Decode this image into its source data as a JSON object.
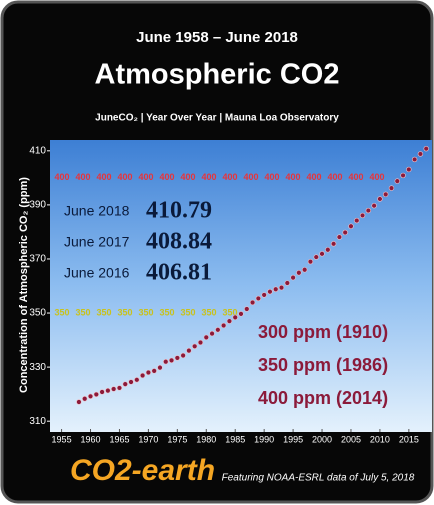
{
  "chart_data": {
    "type": "scatter",
    "header": "June 1958 – June 2018",
    "title": "Atmospheric CO2",
    "subtitle": "JuneCO₂ | Year Over Year | Mauna Loa Observatory",
    "y_label": "Concentration of Atmospheric CO₂ (ppm)",
    "x": [
      1958,
      1959,
      1960,
      1961,
      1962,
      1963,
      1964,
      1965,
      1966,
      1967,
      1968,
      1969,
      1970,
      1971,
      1972,
      1973,
      1974,
      1975,
      1976,
      1977,
      1978,
      1979,
      1980,
      1981,
      1982,
      1983,
      1984,
      1985,
      1986,
      1987,
      1988,
      1989,
      1990,
      1991,
      1992,
      1993,
      1994,
      1995,
      1996,
      1997,
      1998,
      1999,
      2000,
      2001,
      2002,
      2003,
      2004,
      2005,
      2006,
      2007,
      2008,
      2009,
      2010,
      2011,
      2012,
      2013,
      2014,
      2015,
      2016,
      2017,
      2018
    ],
    "series": [
      {
        "name": "June CO2",
        "color": "#8b1a3a",
        "values": [
          317.1,
          318.3,
          319.2,
          319.9,
          320.8,
          321.3,
          321.9,
          322.3,
          323.7,
          324.5,
          325.3,
          326.9,
          328.0,
          328.6,
          329.8,
          332.0,
          332.5,
          333.4,
          334.3,
          336.1,
          337.7,
          339.1,
          341.0,
          342.4,
          343.8,
          345.4,
          347.0,
          348.4,
          349.7,
          351.5,
          353.9,
          355.4,
          356.7,
          357.9,
          358.8,
          359.4,
          361.1,
          363.1,
          364.9,
          366.0,
          369.0,
          370.7,
          371.9,
          373.4,
          375.6,
          378.1,
          379.8,
          382.1,
          384.2,
          386.1,
          387.9,
          389.7,
          392.2,
          393.9,
          396.2,
          398.8,
          400.9,
          403.1,
          406.81,
          408.84,
          410.79
        ]
      }
    ],
    "xlim": [
      1953,
      2019
    ],
    "ylim": [
      306,
      414
    ],
    "xticks": [
      1955,
      1960,
      1965,
      1970,
      1975,
      1980,
      1985,
      1990,
      1995,
      2000,
      2005,
      2010,
      2015
    ],
    "yticks": [
      310,
      330,
      350,
      370,
      390,
      410
    ],
    "reference_lines": [
      {
        "value": 400,
        "label": "400",
        "color": "#e8343a"
      },
      {
        "value": 350,
        "label": "350",
        "color": "#c9c21c"
      }
    ],
    "readings": [
      {
        "label": "June 2018",
        "value": 410.79
      },
      {
        "label": "June 2017",
        "value": 408.84
      },
      {
        "label": "June 2016",
        "value": 406.81
      }
    ],
    "milestones": [
      "300 ppm (1910)",
      "350 ppm (1986)",
      "400 ppm (2014)"
    ],
    "logo": "CO2-earth",
    "footer": "Featuring NOAA-ESRL data of July 5, 2018"
  }
}
